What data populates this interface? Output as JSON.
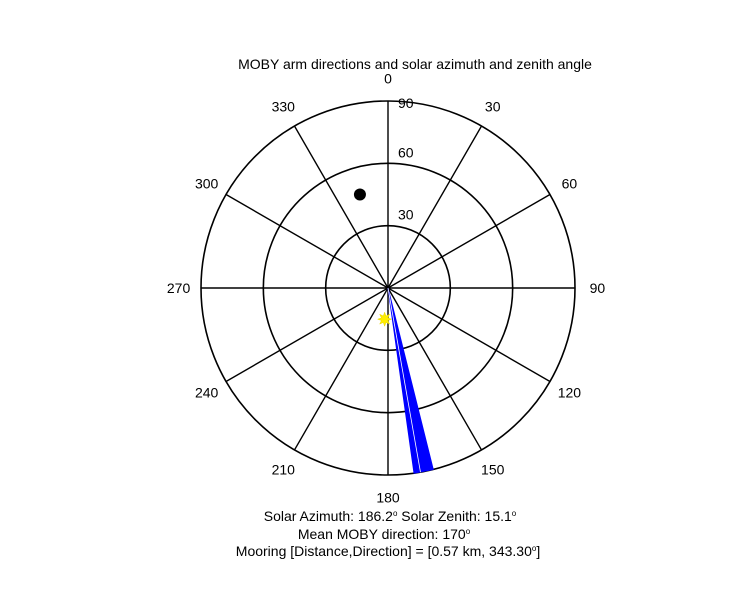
{
  "chart_data": {
    "type": "polar",
    "title": "MOBY arm directions and solar azimuth and zenith angle",
    "theta_direction": "clockwise",
    "theta_zero": "top",
    "theta_ticks": [
      0,
      30,
      60,
      90,
      120,
      150,
      180,
      210,
      240,
      270,
      300,
      330
    ],
    "radial_ticks": [
      30,
      60,
      90
    ],
    "r_max": 90,
    "arm_directions": {
      "label": "Mean MOBY direction",
      "mean_deg": 170,
      "span_deg": [
        166,
        172
      ],
      "r": 90,
      "color": "#0000ff"
    },
    "sun": {
      "azimuth_deg": 186.2,
      "zenith_deg": 15.1,
      "color": "#ffee00"
    },
    "mooring_marker": {
      "azimuth_deg": 343.3,
      "r": 47,
      "color": "#000000"
    },
    "footer": [
      [
        "Solar Azimuth: 186.2",
        "o",
        "   Solar Zenith: 15.1",
        "o"
      ],
      [
        "Mean MOBY direction: 170",
        "o"
      ],
      [
        "Mooring [Distance,Direction] = [0.57 km, 343.30",
        "o",
        "]"
      ]
    ]
  }
}
